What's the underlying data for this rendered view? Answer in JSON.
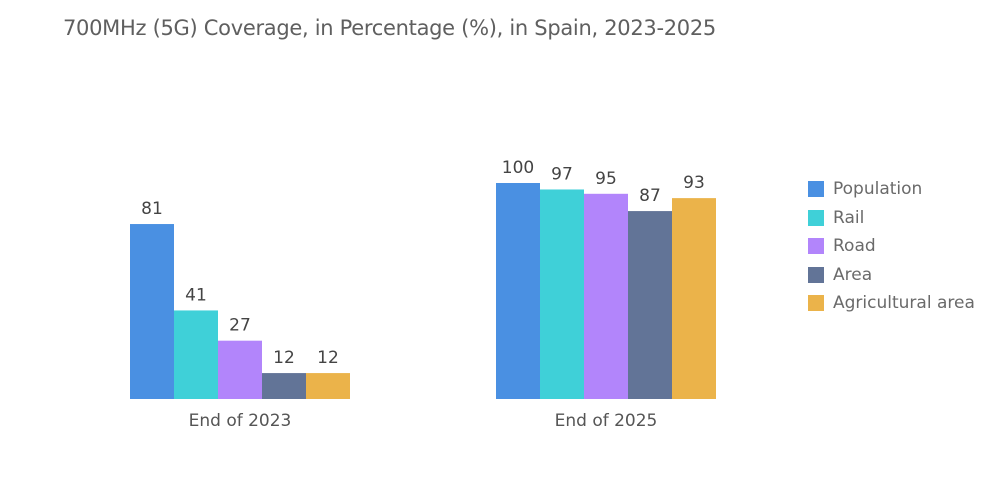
{
  "chart_data": {
    "type": "bar",
    "title": "700MHz (5G) Coverage, in Percentage (%), in Spain, 2023-2025",
    "categories": [
      "End of 2023",
      "End of 2025"
    ],
    "series": [
      {
        "name": "Population",
        "color": "#4a90e2",
        "values": [
          81,
          100
        ]
      },
      {
        "name": "Rail",
        "color": "#3fd0d8",
        "values": [
          41,
          97
        ]
      },
      {
        "name": "Road",
        "color": "#b285fb",
        "values": [
          27,
          95
        ]
      },
      {
        "name": "Area",
        "color": "#627497",
        "values": [
          12,
          87
        ]
      },
      {
        "name": "Agricultural area",
        "color": "#ebb34a",
        "values": [
          12,
          93
        ]
      }
    ],
    "xlabel": "",
    "ylabel": "",
    "ylim": [
      0,
      100
    ],
    "grid": false,
    "legend_position": "right"
  }
}
